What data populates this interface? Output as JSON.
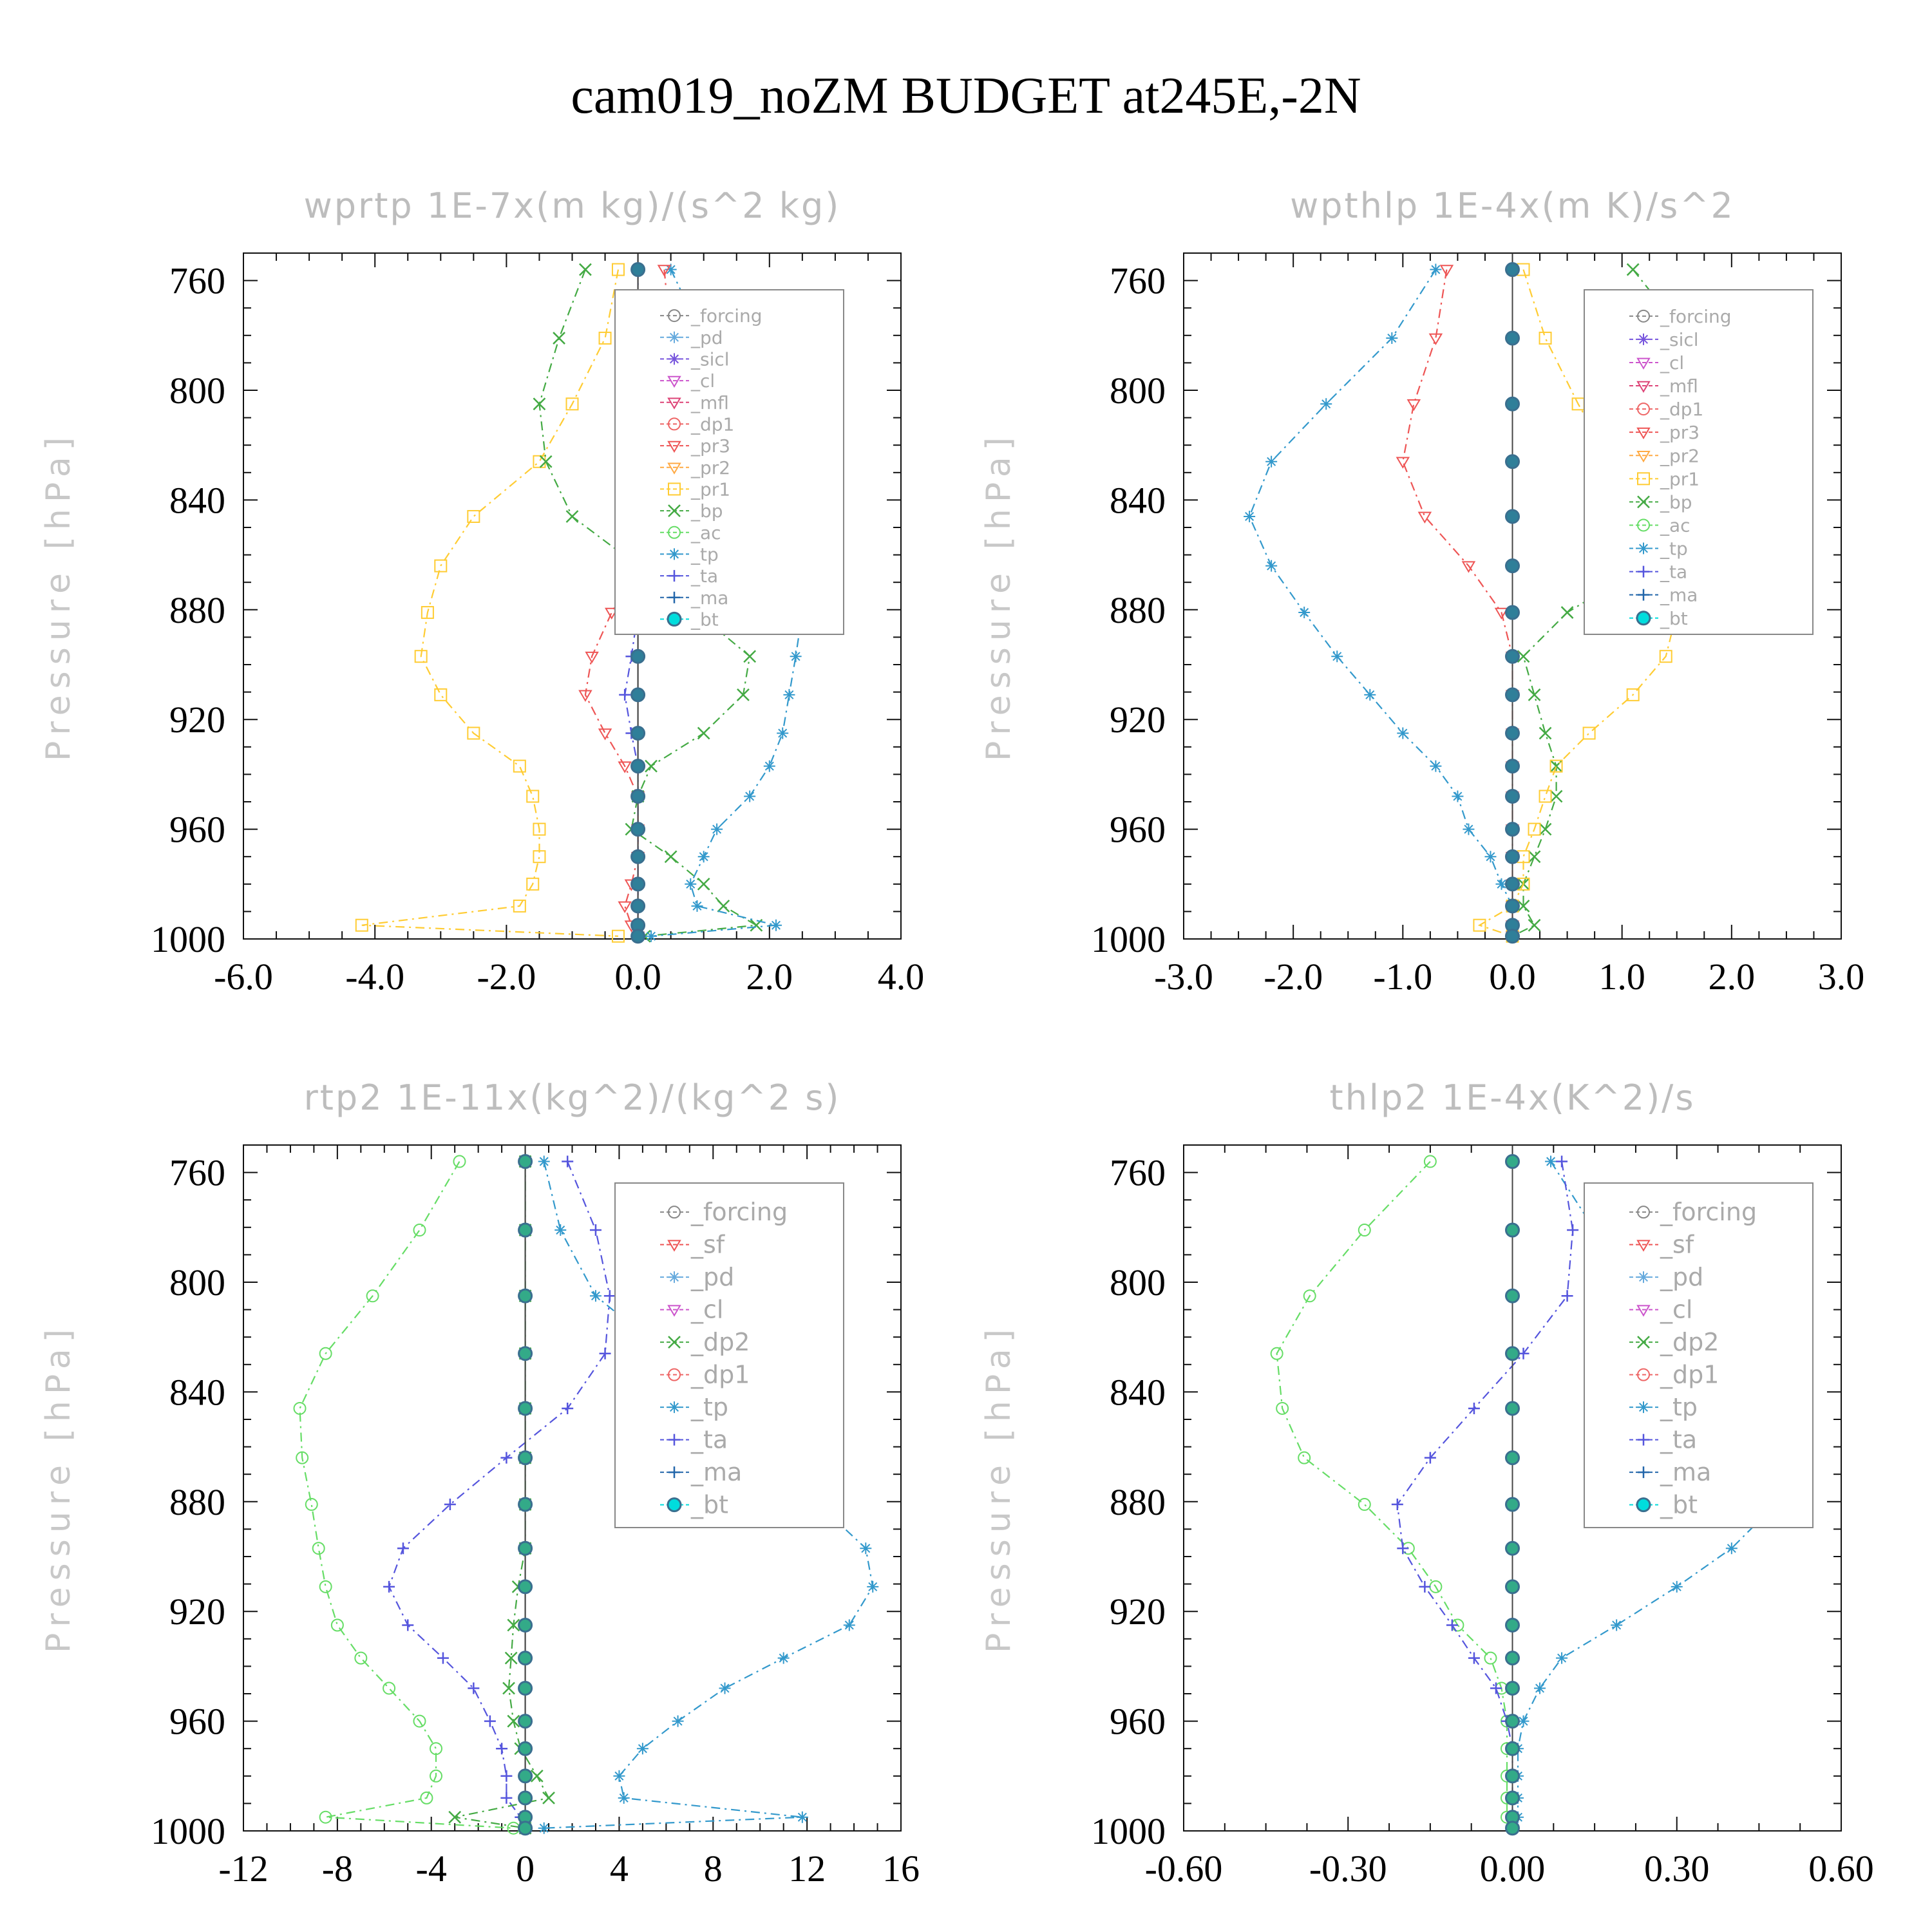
{
  "title": "cam019_noZM  BUDGET at245E,-2N",
  "chart_data": [
    {
      "type": "line",
      "title": "wprtp  1E-7x(m kg)/(s^2 kg)",
      "ylabel": "Pressure [hPa]",
      "xlim": [
        -6,
        4
      ],
      "ylim": [
        1000,
        750
      ],
      "xticks": [
        "-6.0",
        "-4.0",
        "-2.0",
        "0.0",
        "2.0",
        "4.0"
      ],
      "xtick_values": [
        -6,
        -4,
        -2,
        0,
        2,
        4
      ],
      "yticks": [
        "760",
        "800",
        "840",
        "880",
        "920",
        "960",
        "1000"
      ],
      "ytick_values": [
        760,
        800,
        840,
        880,
        920,
        960,
        1000
      ],
      "legend": [
        "_forcing",
        "_pd",
        "_sicl",
        "_cl",
        "_mfl",
        "_dp1",
        "_pr3",
        "_pr2",
        "_pr1",
        "_bp",
        "_ac",
        "_tp",
        "_ta",
        "_ma",
        "_bt"
      ],
      "y": [
        756,
        781,
        805,
        826,
        846,
        864,
        881,
        897,
        911,
        925,
        937,
        948,
        960,
        970,
        980,
        988,
        995,
        999
      ],
      "series": [
        {
          "name": "_pr1",
          "color": "#ffcc33",
          "marker": "square",
          "values": [
            -0.3,
            -0.5,
            -1.0,
            -1.5,
            -2.5,
            -3.0,
            -3.2,
            -3.3,
            -3.0,
            -2.5,
            -1.8,
            -1.6,
            -1.5,
            -1.5,
            -1.6,
            -1.8,
            -4.2,
            -0.3
          ]
        },
        {
          "name": "_bp",
          "color": "#44aa44",
          "marker": "x",
          "values": [
            -0.8,
            -1.2,
            -1.5,
            -1.4,
            -1.0,
            0.0,
            0.9,
            1.7,
            1.6,
            1.0,
            0.2,
            0.0,
            -0.1,
            0.5,
            1.0,
            1.3,
            1.8,
            0.1
          ]
        },
        {
          "name": "_tp",
          "color": "#3399cc",
          "marker": "asterisk",
          "values": [
            0.5,
            1.0,
            1.5,
            2.0,
            2.4,
            2.5,
            2.5,
            2.4,
            2.3,
            2.2,
            2.0,
            1.7,
            1.2,
            1.0,
            0.8,
            0.9,
            2.1,
            0.2
          ]
        },
        {
          "name": "_pr3",
          "color": "#ee5555",
          "marker": "tri-down",
          "values": [
            0.4,
            0.5,
            0.6,
            0.6,
            0.4,
            0.0,
            -0.4,
            -0.7,
            -0.8,
            -0.5,
            -0.2,
            0.0,
            0.0,
            0.0,
            -0.1,
            -0.2,
            -0.1,
            0.0
          ]
        },
        {
          "name": "_ta",
          "color": "#5555dd",
          "marker": "plus",
          "values": [
            0.0,
            0.0,
            0.0,
            0.0,
            0.0,
            0.0,
            0.0,
            -0.1,
            -0.2,
            -0.1,
            0.0,
            0.0,
            0.0,
            0.0,
            0.0,
            0.0,
            0.0,
            0.0
          ]
        },
        {
          "name": "_bt",
          "color": "#2f7f99",
          "marker": "dot",
          "values": [
            0,
            0,
            0,
            0,
            0,
            0,
            0,
            0,
            0,
            0,
            0,
            0,
            0,
            0,
            0,
            0,
            0,
            0
          ]
        }
      ]
    },
    {
      "type": "line",
      "title": "wpthlp  1E-4x(m K)/s^2",
      "ylabel": "Pressure [hPa]",
      "xlim": [
        -3,
        3
      ],
      "ylim": [
        1000,
        750
      ],
      "xticks": [
        "-3.0",
        "-2.0",
        "-1.0",
        "0.0",
        "1.0",
        "2.0",
        "3.0"
      ],
      "xtick_values": [
        -3,
        -2,
        -1,
        0,
        1,
        2,
        3
      ],
      "yticks": [
        "760",
        "800",
        "840",
        "880",
        "920",
        "960",
        "1000"
      ],
      "ytick_values": [
        760,
        800,
        840,
        880,
        920,
        960,
        1000
      ],
      "legend": [
        "_forcing",
        "_sicl",
        "_cl",
        "_mfl",
        "_dp1",
        "_pr3",
        "_pr2",
        "_pr1",
        "_bp",
        "_ac",
        "_tp",
        "_ta",
        "_ma",
        "_bt"
      ],
      "y": [
        756,
        781,
        805,
        826,
        846,
        864,
        881,
        897,
        911,
        925,
        937,
        948,
        960,
        970,
        980,
        988,
        995,
        999
      ],
      "series": [
        {
          "name": "_tp",
          "color": "#3399cc",
          "marker": "asterisk",
          "values": [
            -0.7,
            -1.1,
            -1.7,
            -2.2,
            -2.4,
            -2.2,
            -1.9,
            -1.6,
            -1.3,
            -1.0,
            -0.7,
            -0.5,
            -0.4,
            -0.2,
            -0.1,
            0.0,
            0.0,
            0.0
          ]
        },
        {
          "name": "_bp",
          "color": "#44aa44",
          "marker": "x",
          "values": [
            1.1,
            1.6,
            2.1,
            2.3,
            1.9,
            1.2,
            0.5,
            0.1,
            0.2,
            0.3,
            0.4,
            0.4,
            0.3,
            0.2,
            0.1,
            0.1,
            0.2,
            0.0
          ]
        },
        {
          "name": "_pr1",
          "color": "#ffcc33",
          "marker": "square",
          "values": [
            0.1,
            0.3,
            0.6,
            0.9,
            1.2,
            1.4,
            1.5,
            1.4,
            1.1,
            0.7,
            0.4,
            0.3,
            0.2,
            0.1,
            0.1,
            0.0,
            -0.3,
            0.0
          ]
        },
        {
          "name": "_pr3",
          "color": "#ee5555",
          "marker": "tri-down",
          "values": [
            -0.6,
            -0.7,
            -0.9,
            -1.0,
            -0.8,
            -0.4,
            -0.1,
            0.0,
            0.0,
            0.0,
            0.0,
            0.0,
            0.0,
            0.0,
            0.0,
            0.0,
            0.0,
            0.0
          ]
        },
        {
          "name": "_bt",
          "color": "#2f7f99",
          "marker": "dot",
          "values": [
            0,
            0,
            0,
            0,
            0,
            0,
            0,
            0,
            0,
            0,
            0,
            0,
            0,
            0,
            0,
            0,
            0,
            0
          ]
        }
      ]
    },
    {
      "type": "line",
      "title": "rtp2  1E-11x(kg^2)/(kg^2 s)",
      "ylabel": "Pressure [hPa]",
      "xlim": [
        -12,
        16
      ],
      "ylim": [
        1000,
        750
      ],
      "xticks": [
        "-12",
        "-8",
        "-4",
        "0",
        "4",
        "8",
        "12",
        "16"
      ],
      "xtick_values": [
        -12,
        -8,
        -4,
        0,
        4,
        8,
        12,
        16
      ],
      "yticks": [
        "760",
        "800",
        "840",
        "880",
        "920",
        "960",
        "1000"
      ],
      "ytick_values": [
        760,
        800,
        840,
        880,
        920,
        960,
        1000
      ],
      "legend": [
        "_forcing",
        "_sf",
        "_pd",
        "_cl",
        "_dp2",
        "_dp1",
        "_tp",
        "_ta",
        "_ma",
        "_bt"
      ],
      "y": [
        756,
        781,
        805,
        826,
        846,
        864,
        881,
        897,
        911,
        925,
        937,
        948,
        960,
        970,
        980,
        988,
        995,
        999
      ],
      "series": [
        {
          "name": "_dp1",
          "color": "#66dd66",
          "marker": "circle",
          "values": [
            -2.8,
            -4.5,
            -6.5,
            -8.5,
            -9.6,
            -9.5,
            -9.1,
            -8.8,
            -8.5,
            -8.0,
            -7.0,
            -5.8,
            -4.5,
            -3.8,
            -3.8,
            -4.2,
            -8.5,
            -0.5
          ]
        },
        {
          "name": "_tp",
          "color": "#3399cc",
          "marker": "asterisk",
          "values": [
            0.8,
            1.5,
            3.0,
            6.0,
            10.0,
            10.5,
            12.5,
            14.5,
            14.8,
            13.8,
            11.0,
            8.5,
            6.5,
            5.0,
            4.0,
            4.2,
            11.8,
            0.8
          ]
        },
        {
          "name": "_ta",
          "color": "#5555dd",
          "marker": "plus",
          "values": [
            1.8,
            3.0,
            3.6,
            3.4,
            1.8,
            -0.8,
            -3.2,
            -5.2,
            -5.8,
            -5.0,
            -3.5,
            -2.2,
            -1.5,
            -1.0,
            -0.8,
            -0.8,
            -0.2,
            0.0
          ]
        },
        {
          "name": "_dp2",
          "color": "#44aa44",
          "marker": "x",
          "values": [
            0.0,
            0.0,
            0.0,
            0.0,
            0.0,
            0.0,
            0.0,
            0.0,
            -0.3,
            -0.5,
            -0.6,
            -0.7,
            -0.5,
            -0.2,
            0.5,
            1.0,
            -3.0,
            0.0
          ]
        },
        {
          "name": "_bt",
          "color": "#33aa88",
          "marker": "dot",
          "values": [
            0,
            0,
            0,
            0,
            0,
            0,
            0,
            0,
            0,
            0,
            0,
            0,
            0,
            0,
            0,
            0,
            0,
            0
          ]
        }
      ]
    },
    {
      "type": "line",
      "title": "thlp2  1E-4x(K^2)/s",
      "ylabel": "Pressure [hPa]",
      "xlim": [
        -0.6,
        0.6
      ],
      "ylim": [
        1000,
        750
      ],
      "xticks": [
        "-0.60",
        "-0.30",
        "0.00",
        "0.30",
        "0.60"
      ],
      "xtick_values": [
        -0.6,
        -0.3,
        0,
        0.3,
        0.6
      ],
      "yticks": [
        "760",
        "800",
        "840",
        "880",
        "920",
        "960",
        "1000"
      ],
      "ytick_values": [
        760,
        800,
        840,
        880,
        920,
        960,
        1000
      ],
      "legend": [
        "_forcing",
        "_sf",
        "_pd",
        "_cl",
        "_dp2",
        "_dp1",
        "_tp",
        "_ta",
        "_ma",
        "_bt"
      ],
      "y": [
        756,
        781,
        805,
        826,
        846,
        864,
        881,
        897,
        911,
        925,
        937,
        948,
        960,
        970,
        980,
        988,
        995,
        999
      ],
      "series": [
        {
          "name": "_dp1",
          "color": "#66dd66",
          "marker": "circle",
          "values": [
            -0.15,
            -0.27,
            -0.37,
            -0.43,
            -0.42,
            -0.38,
            -0.27,
            -0.19,
            -0.14,
            -0.1,
            -0.04,
            -0.02,
            -0.01,
            -0.01,
            -0.01,
            -0.01,
            -0.01,
            0.0
          ]
        },
        {
          "name": "_tp",
          "color": "#3399cc",
          "marker": "asterisk",
          "values": [
            0.07,
            0.15,
            0.24,
            0.34,
            0.5,
            0.52,
            0.48,
            0.4,
            0.3,
            0.19,
            0.09,
            0.05,
            0.02,
            0.01,
            0.01,
            0.01,
            0.01,
            0.0
          ]
        },
        {
          "name": "_ta",
          "color": "#5555dd",
          "marker": "plus",
          "values": [
            0.09,
            0.11,
            0.1,
            0.02,
            -0.07,
            -0.15,
            -0.21,
            -0.2,
            -0.16,
            -0.11,
            -0.07,
            -0.03,
            -0.01,
            0.0,
            0.0,
            0.0,
            0.0,
            0.0
          ]
        },
        {
          "name": "_bt",
          "color": "#33aa88",
          "marker": "dot",
          "values": [
            0,
            0,
            0,
            0,
            0,
            0,
            0,
            0,
            0,
            0,
            0,
            0,
            0,
            0,
            0,
            0,
            0,
            0
          ]
        }
      ]
    }
  ]
}
